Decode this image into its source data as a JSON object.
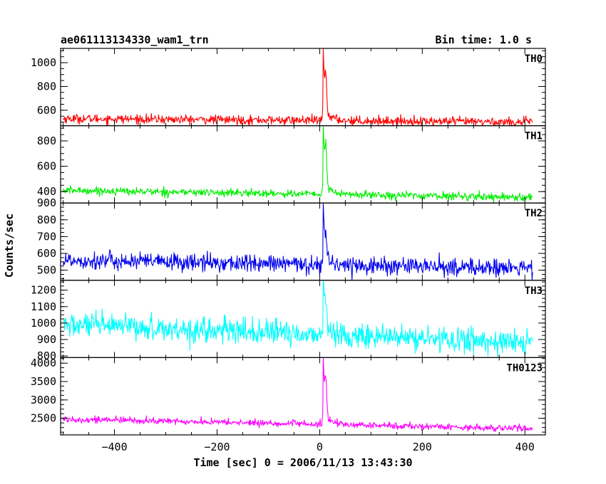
{
  "header": {
    "title": "ae061113134330_wam1_trn",
    "bin_time": "Bin time: 1.0 s"
  },
  "chart_data": {
    "type": "line",
    "title": "ae061113134330_wam1_trn",
    "subtitle": "Bin time: 1.0 s",
    "xlabel": "Time [sec] 0 = 2006/11/13 13:43:30",
    "ylabel": "Counts/sec",
    "xlim": [
      -505,
      440
    ],
    "x_data_range": [
      -500,
      415
    ],
    "trigger_time": 7,
    "x_ticks": [
      -400,
      -200,
      0,
      200,
      400
    ],
    "grid": false,
    "legend": "none",
    "panels": [
      {
        "name": "TH0",
        "color": "#ff0000",
        "ylim": [
          470,
          1120
        ],
        "y_ticks": [
          600,
          800,
          1000
        ],
        "y_tick_labels": [
          "600",
          "800",
          "1000"
        ],
        "baseline_start": 530,
        "baseline_end": 500,
        "noise_amplitude": 25,
        "peak": 1080,
        "secondary_peak": 820
      },
      {
        "name": "TH1",
        "color": "#00ee00",
        "ylim": [
          310,
          920
        ],
        "y_ticks": [
          400,
          600,
          800
        ],
        "y_tick_labels": [
          "400",
          "600",
          "800"
        ],
        "baseline_start": 410,
        "baseline_end": 355,
        "noise_amplitude": 20,
        "peak": 900,
        "secondary_peak": 680
      },
      {
        "name": "TH2",
        "color": "#0000ee",
        "ylim": [
          440,
          900
        ],
        "y_ticks": [
          500,
          600,
          700,
          800,
          900
        ],
        "y_tick_labels": [
          "500",
          "600",
          "700",
          "800",
          "900"
        ],
        "baseline_start": 560,
        "baseline_end": 510,
        "noise_amplitude": 35,
        "peak": 870,
        "secondary_peak": 680
      },
      {
        "name": "TH3",
        "color": "#00ffff",
        "ylim": [
          790,
          1260
        ],
        "y_ticks": [
          800,
          900,
          1000,
          1100,
          1200
        ],
        "y_tick_labels": [
          "800",
          "900",
          "1000",
          "1100",
          "1200"
        ],
        "baseline_start": 990,
        "baseline_end": 880,
        "noise_amplitude": 50,
        "peak": 1250,
        "secondary_peak": 1100
      },
      {
        "name": "TH0123",
        "color": "#ff00ff",
        "ylim": [
          2050,
          4150
        ],
        "y_ticks": [
          2500,
          3000,
          3500,
          4000
        ],
        "y_tick_labels": [
          "2500",
          "3000",
          "3500",
          "4000"
        ],
        "baseline_start": 2480,
        "baseline_end": 2220,
        "noise_amplitude": 60,
        "peak": 4050,
        "secondary_peak": 3300
      }
    ]
  }
}
